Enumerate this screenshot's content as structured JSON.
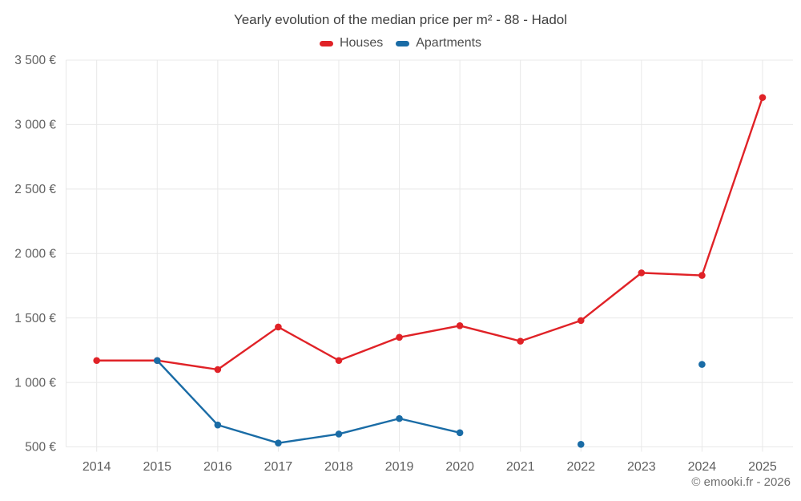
{
  "chart": {
    "title": "Yearly evolution of the median price per m² - 88 - Hadol",
    "legend": [
      {
        "label": "Houses",
        "color": "#e02227"
      },
      {
        "label": "Apartments",
        "color": "#1a6ca6"
      }
    ]
  },
  "footer": {
    "copyright": "© emooki.fr - 2026"
  },
  "chart_data": {
    "type": "line",
    "title": "Yearly evolution of the median price per m² - 88 - Hadol",
    "x": [
      2014,
      2015,
      2016,
      2017,
      2018,
      2019,
      2020,
      2021,
      2022,
      2023,
      2024,
      2025
    ],
    "series": [
      {
        "name": "Houses",
        "color": "#e02227",
        "values": [
          1170,
          1170,
          1100,
          1430,
          1170,
          1350,
          1440,
          1320,
          1480,
          1850,
          1830,
          3210
        ]
      },
      {
        "name": "Apartments",
        "color": "#1a6ca6",
        "values": [
          null,
          1170,
          670,
          530,
          600,
          720,
          610,
          null,
          520,
          null,
          1140,
          null
        ]
      }
    ],
    "yticks": [
      500,
      1000,
      1500,
      2000,
      2500,
      3000,
      3500
    ],
    "ytick_labels": [
      "500 €",
      "1 000 €",
      "1 500 €",
      "2 000 €",
      "2 500 €",
      "3 000 €",
      "3 500 €"
    ],
    "ylim": [
      500,
      3500
    ],
    "xlabel": "",
    "ylabel": "",
    "grid": true,
    "legend_position": "top",
    "unit": "€",
    "colors": {
      "gridline": "#e8e8e8",
      "tick_text": "#606060"
    }
  }
}
